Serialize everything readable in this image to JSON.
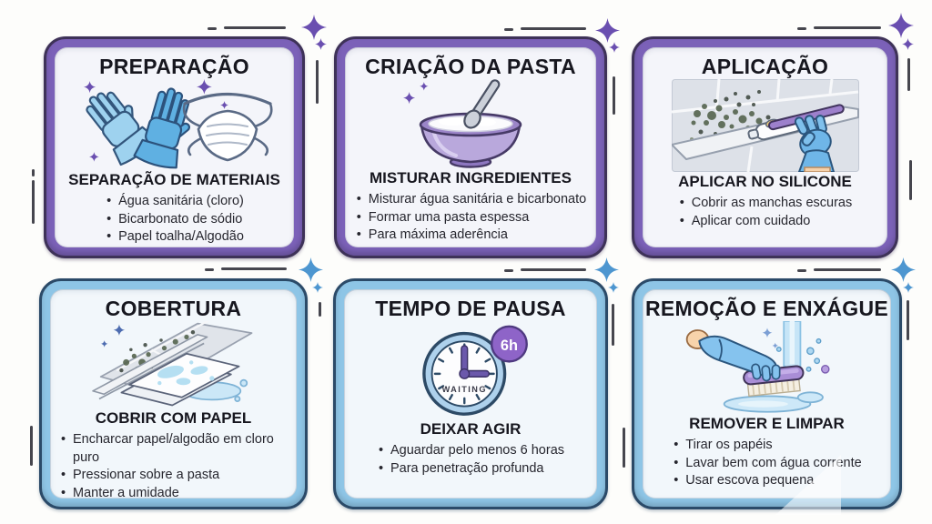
{
  "page": {
    "language": "pt-BR",
    "topic": "Limpeza de mofo em silicone — passo a passo"
  },
  "colors": {
    "purple_card_border": "#7b61b8",
    "purple_card_outline": "#3e3258",
    "blue_card_border": "#8ec5e6",
    "blue_card_outline": "#2b4a68",
    "card_background": "#f4f5fa",
    "title_text": "#17171f",
    "bullet_text": "#26262e",
    "sparkle_purple": "#6a4fb0",
    "sparkle_blue": "#4d96d0"
  },
  "cards": [
    {
      "id": "preparacao",
      "accent": "purple",
      "title": "PREPARAÇÃO",
      "illustration": "gloves-and-mask",
      "subtitle": "SEPARAÇÃO DE MATERIAIS",
      "bullets": [
        "Água sanitária (cloro)",
        "Bicarbonato de sódio",
        "Papel toalha/Algodão"
      ]
    },
    {
      "id": "criacao-da-pasta",
      "accent": "purple",
      "title": "CRIAÇÃO DA PASTA",
      "illustration": "bowl-with-paste",
      "subtitle": "MISTURAR INGREDIENTES",
      "bullets": [
        "Misturar água sanitária e bicarbonato",
        "Formar uma pasta espessa",
        "Para máxima aderência"
      ]
    },
    {
      "id": "aplicacao",
      "accent": "purple",
      "title": "APLICAÇÃO",
      "illustration": "applying-paste-on-moldy-silicone",
      "subtitle": "APLICAR NO SILICONE",
      "bullets": [
        "Cobrir as manchas escuras",
        "Aplicar com cuidado"
      ]
    },
    {
      "id": "cobertura",
      "accent": "blue",
      "title": "COBERTURA",
      "illustration": "wet-paper-on-tiles",
      "subtitle": "COBRIR COM PAPEL",
      "bullets": [
        "Encharcar papel/algodão em cloro puro",
        "Pressionar sobre a pasta",
        "Manter a umidade"
      ]
    },
    {
      "id": "tempo-de-pausa",
      "accent": "blue",
      "title": "TEMPO DE PAUSA",
      "illustration": "waiting-clock",
      "clock": {
        "badge": "6h",
        "label": "WAITING"
      },
      "subtitle": "DEIXAR AGIR",
      "bullets": [
        "Aguardar pelo menos 6 horas",
        "Para penetração profunda"
      ]
    },
    {
      "id": "remocao-e-enxague",
      "accent": "blue",
      "title": "REMOÇÃO E ENXÁGUE",
      "illustration": "scrub-brush-under-running-water",
      "subtitle": "REMOVER E LIMPAR",
      "bullets": [
        "Tirar os papéis",
        "Lavar bem com água corrente",
        "Usar escova pequena"
      ]
    }
  ]
}
